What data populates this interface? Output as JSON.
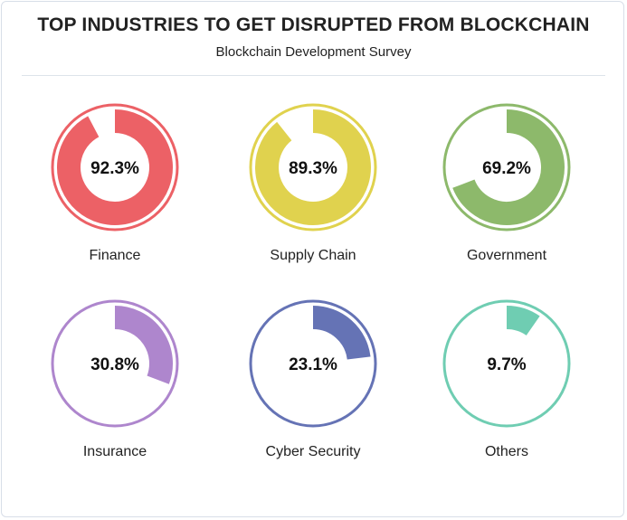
{
  "chart_data": {
    "type": "radial-progress",
    "title": "TOP INDUSTRIES TO GET DISRUPTED FROM BLOCKCHAIN",
    "subtitle": "Blockchain Development Survey",
    "unit": "%",
    "items": [
      {
        "name": "Finance",
        "value": 92.3,
        "label": "92.3%",
        "color": "#ec6166"
      },
      {
        "name": "Supply Chain",
        "value": 89.3,
        "label": "89.3%",
        "color": "#e0d24e"
      },
      {
        "name": "Government",
        "value": 69.2,
        "label": "69.2%",
        "color": "#8db96b"
      },
      {
        "name": "Insurance",
        "value": 30.8,
        "label": "30.8%",
        "color": "#ae86cd"
      },
      {
        "name": "Cyber Security",
        "value": 23.1,
        "label": "23.1%",
        "color": "#6573b5"
      },
      {
        "name": "Others",
        "value": 9.7,
        "label": "9.7%",
        "color": "#6fcdb2"
      }
    ]
  }
}
